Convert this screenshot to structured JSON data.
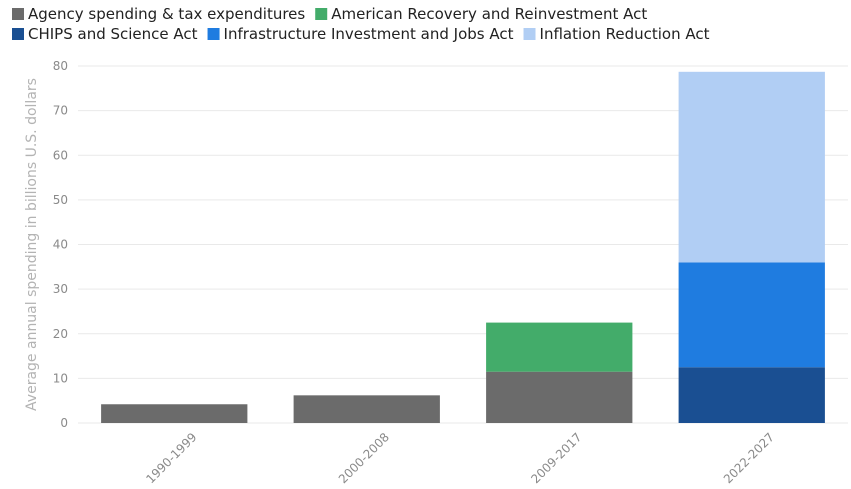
{
  "chart_data": {
    "type": "bar",
    "stacked": true,
    "categories": [
      "1990-1999",
      "2000-2008",
      "2009-2017",
      "2022-2027"
    ],
    "series": [
      {
        "name": "Agency spending & tax expenditures",
        "color": "#6b6b6b",
        "values": [
          4.2,
          6.2,
          11.5,
          0
        ]
      },
      {
        "name": "American Recovery and Reinvestment Act",
        "color": "#43ac6a",
        "values": [
          0,
          0,
          11.0,
          0
        ]
      },
      {
        "name": "CHIPS and Science Act",
        "color": "#1a4f92",
        "values": [
          0,
          0,
          0,
          12.5
        ]
      },
      {
        "name": "Infrastructure Investment and Jobs Act",
        "color": "#1f7ce0",
        "values": [
          0,
          0,
          0,
          23.5
        ]
      },
      {
        "name": "Inflation Reduction Act",
        "color": "#b1cef4",
        "values": [
          0,
          0,
          0,
          42.7
        ]
      }
    ],
    "title": "",
    "xlabel": "",
    "ylabel": "Average annual spending in billions U.S. dollars",
    "ylim": [
      0,
      80
    ],
    "yticks": [
      0,
      10,
      20,
      30,
      40,
      50,
      60,
      70,
      80
    ],
    "grid": true,
    "legend_position": "top-left"
  }
}
